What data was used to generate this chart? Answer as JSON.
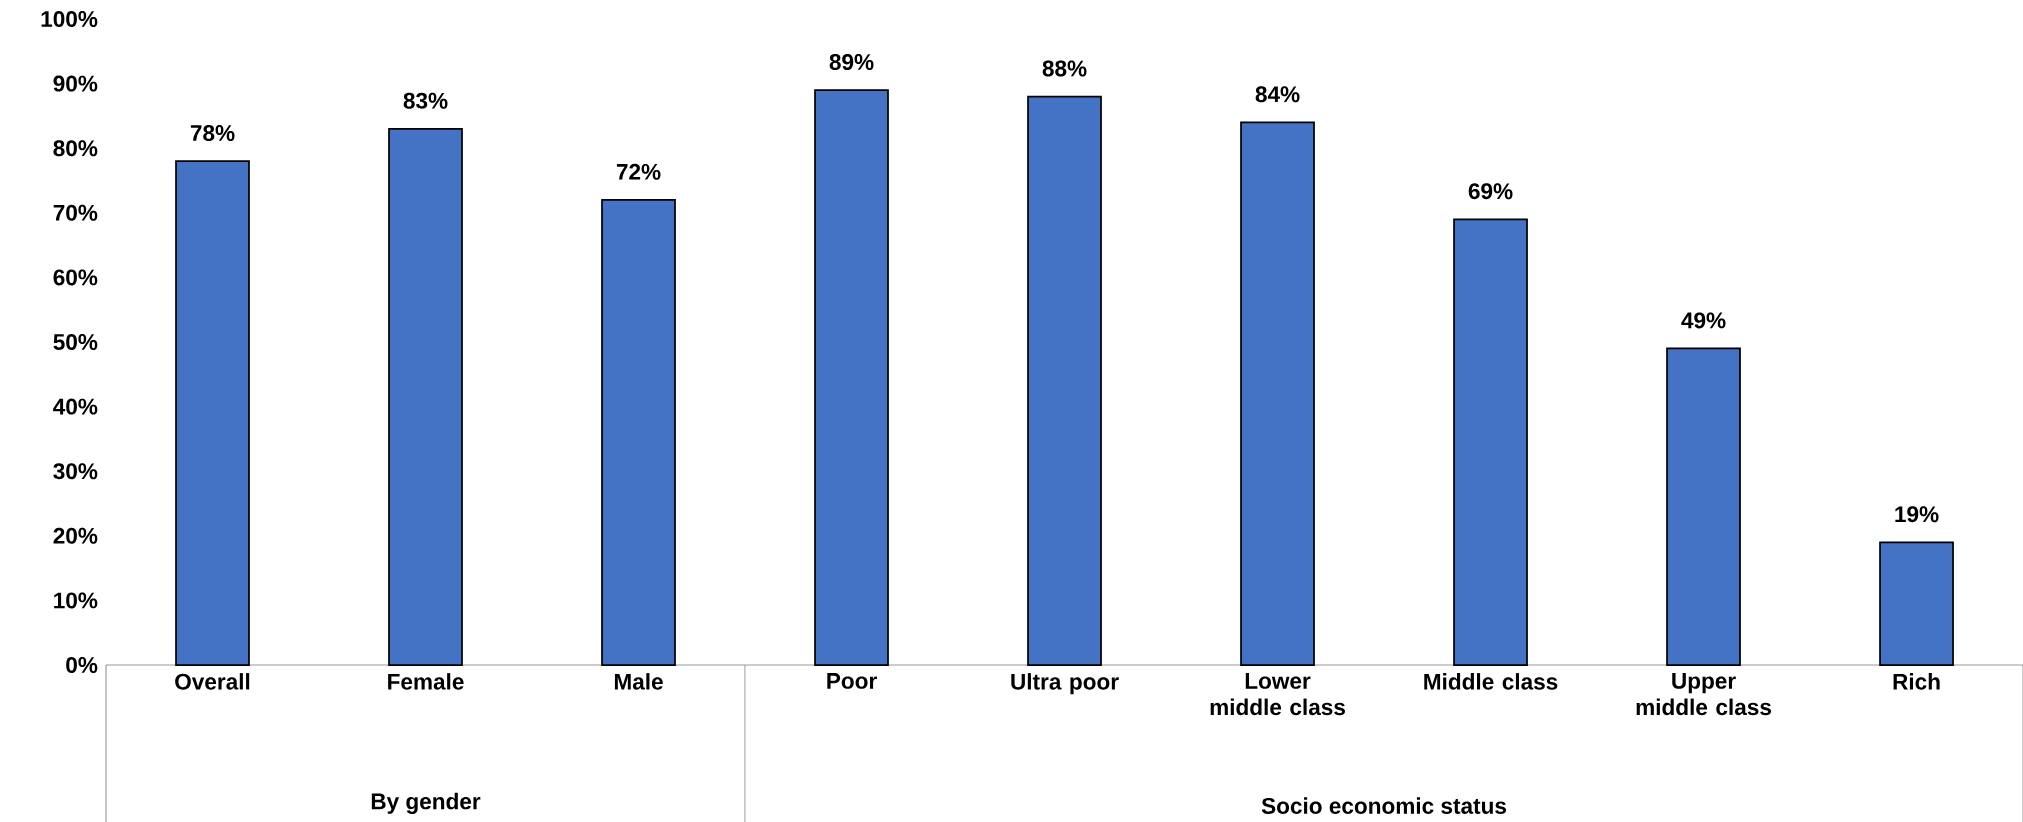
{
  "chart_data": {
    "type": "bar",
    "categories": [
      "Overall",
      "Female",
      "Male",
      "Poor",
      "Ultra poor",
      "Lower middle class",
      "Middle class",
      "Upper middle class",
      "Rich"
    ],
    "values": [
      78,
      83,
      72,
      89,
      88,
      84,
      69,
      49,
      19
    ],
    "value_labels": [
      "78%",
      "83%",
      "72%",
      "89%",
      "88%",
      "84%",
      "69%",
      "49%",
      "19%"
    ],
    "color": "#4472c4",
    "ylim": [
      0,
      100
    ],
    "yticks": [
      {
        "value": 0,
        "label": "0%"
      },
      {
        "value": 10,
        "label": "10%"
      },
      {
        "value": 20,
        "label": "20%"
      },
      {
        "value": 30,
        "label": "30%"
      },
      {
        "value": 40,
        "label": "40%"
      },
      {
        "value": 50,
        "label": "50%"
      },
      {
        "value": 60,
        "label": "60%"
      },
      {
        "value": 70,
        "label": "70%"
      },
      {
        "value": 80,
        "label": "80%"
      },
      {
        "value": 90,
        "label": "90%"
      },
      {
        "value": 100,
        "label": "100%"
      }
    ],
    "annotations": [
      "By gender",
      "Socio economic status"
    ],
    "grid": false
  }
}
